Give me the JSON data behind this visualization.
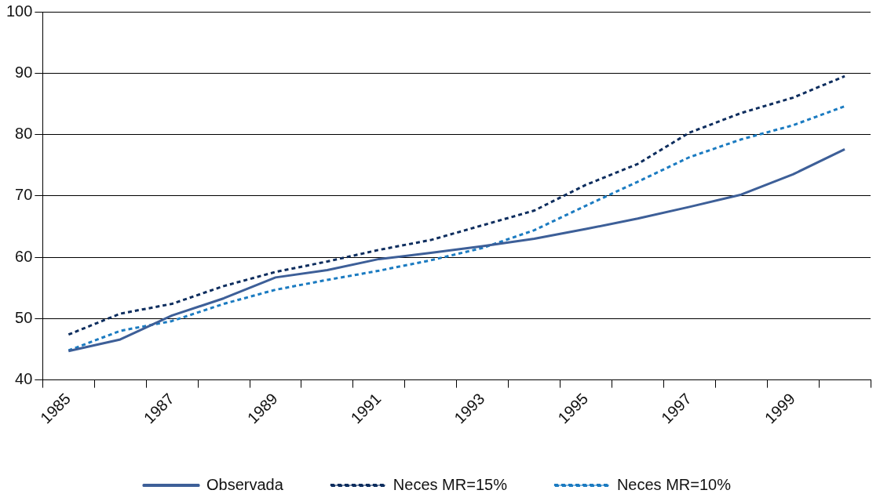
{
  "chart_data": {
    "type": "line",
    "categories": [
      "1985",
      null,
      "1987",
      null,
      "1989",
      null,
      "1991",
      null,
      "1993",
      null,
      "1995",
      null,
      "1997",
      null,
      "1999",
      null
    ],
    "series": [
      {
        "name": "Observada",
        "color": "#3d5f98",
        "line_style": "solid",
        "values": [
          44.7,
          46.6,
          50.5,
          53.3,
          56.7,
          57.9,
          59.7,
          60.7,
          61.8,
          63,
          64.6,
          66.3,
          68.2,
          70.2,
          73.5,
          77.6
        ]
      },
      {
        "name": "Neces MR=15%",
        "color": "#0d2d5e",
        "line_style": "dotted",
        "values": [
          47.4,
          50.8,
          52.4,
          55.3,
          57.6,
          59.3,
          61.2,
          62.8,
          65.2,
          67.6,
          71.8,
          75.2,
          80.3,
          83.5,
          86,
          89.5
        ]
      },
      {
        "name": "Neces MR=10%",
        "color": "#1b7bc1",
        "line_style": "dotted",
        "values": [
          44.8,
          48,
          49.6,
          52.4,
          54.7,
          56.3,
          57.8,
          59.5,
          61.5,
          64.4,
          68.4,
          72.3,
          76.3,
          79.2,
          81.5,
          84.6
        ]
      }
    ],
    "ylim": [
      40,
      100
    ],
    "yticks": [
      40,
      50,
      60,
      70,
      80,
      90,
      100
    ],
    "grid": "y",
    "legend": "bottom",
    "marker": "none"
  }
}
